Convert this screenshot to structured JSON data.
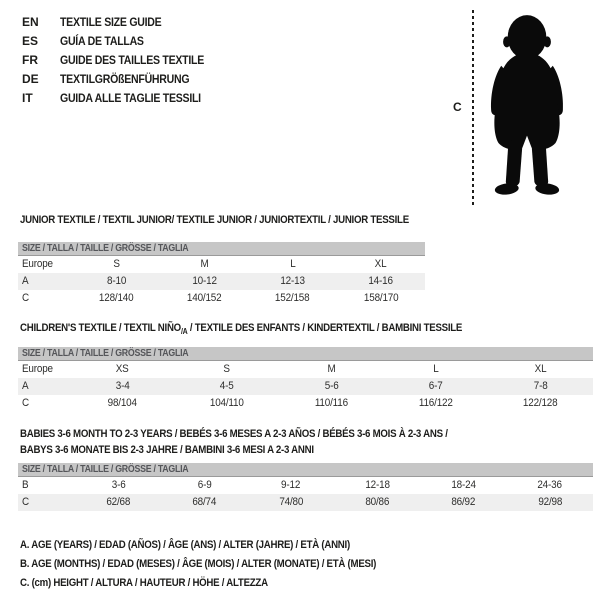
{
  "colors": {
    "header_bar_bg": "#c6c6c6",
    "header_bar_text": "#55565a",
    "row_alt_bg": "#efefef",
    "text": "#1d1d1b",
    "silhouette": "#0a0a0a"
  },
  "languages": [
    {
      "code": "EN",
      "title": "TEXTILE SIZE GUIDE"
    },
    {
      "code": "ES",
      "title": "GUÍA DE TALLAS"
    },
    {
      "code": "FR",
      "title": "GUIDE DES TAILLES TEXTILE"
    },
    {
      "code": "DE",
      "title": "TEXTILGRÖßENFÜHRUNG"
    },
    {
      "code": "IT",
      "title": "GUIDA ALLE TAGLIE TESSILI"
    }
  ],
  "figure": {
    "height_label": "C",
    "silhouette_name": "baby-silhouette"
  },
  "tables": [
    {
      "title": "JUNIOR TEXTILE / TEXTIL JUNIOR/ TEXTILE JUNIOR / JUNIORTEXTIL / JUNIOR TESSILE",
      "size_header": "SIZE / TALLA / TAILLE / GRÖSSE / TAGLIA",
      "rows": [
        {
          "label": "Europe",
          "values": [
            "S",
            "M",
            "L",
            "XL"
          ]
        },
        {
          "label": "A",
          "values": [
            "8-10",
            "10-12",
            "12-13",
            "14-16"
          ]
        },
        {
          "label": "C",
          "values": [
            "128/140",
            "140/152",
            "152/158",
            "158/170"
          ]
        }
      ]
    },
    {
      "title_pre": "CHILDREN'S TEXTILE / TEXTIL NIÑO",
      "title_sub": "/A",
      "title_post": " / TEXTILE DES ENFANTS / KINDERTEXTIL / BAMBINI TESSILE",
      "size_header": "SIZE / TALLA / TAILLE / GRÖSSE / TAGLIA",
      "rows": [
        {
          "label": "Europe",
          "values": [
            "XS",
            "S",
            "M",
            "L",
            "XL"
          ]
        },
        {
          "label": "A",
          "values": [
            "3-4",
            "4-5",
            "5-6",
            "6-7",
            "7-8"
          ]
        },
        {
          "label": "C",
          "values": [
            "98/104",
            "104/110",
            "110/116",
            "116/122",
            "122/128"
          ]
        }
      ]
    },
    {
      "title_line1": "BABIES 3-6 MONTH TO 2-3 YEARS / BEBÉS 3-6 MESES A 2-3 AÑOS / BÉBÉS 3-6 MOIS À 2-3 ANS /",
      "title_line2": "BABYS 3-6 MONATE BIS 2-3 JAHRE / BAMBINI 3-6 MESI A 2-3 ANNI",
      "size_header": "SIZE / TALLA / TAILLE / GRÖSSE / TAGLIA",
      "rows": [
        {
          "label": "B",
          "values": [
            "3-6",
            "6-9",
            "9-12",
            "12-18",
            "18-24",
            "24-36"
          ]
        },
        {
          "label": "C",
          "values": [
            "62/68",
            "68/74",
            "74/80",
            "80/86",
            "86/92",
            "92/98"
          ]
        }
      ]
    }
  ],
  "notes": [
    "A. AGE (YEARS) / EDAD (AÑOS) / ÂGE (ANS) / ALTER (JAHRE) / ETÀ (ANNI)",
    "B. AGE (MONTHS) / EDAD (MESES) / ÂGE (MOIS) / ALTER (MONATE) / ETÀ (MESI)",
    "C. (cm) HEIGHT / ALTURA / HAUTEUR / HÖHE / ALTEZZA"
  ]
}
